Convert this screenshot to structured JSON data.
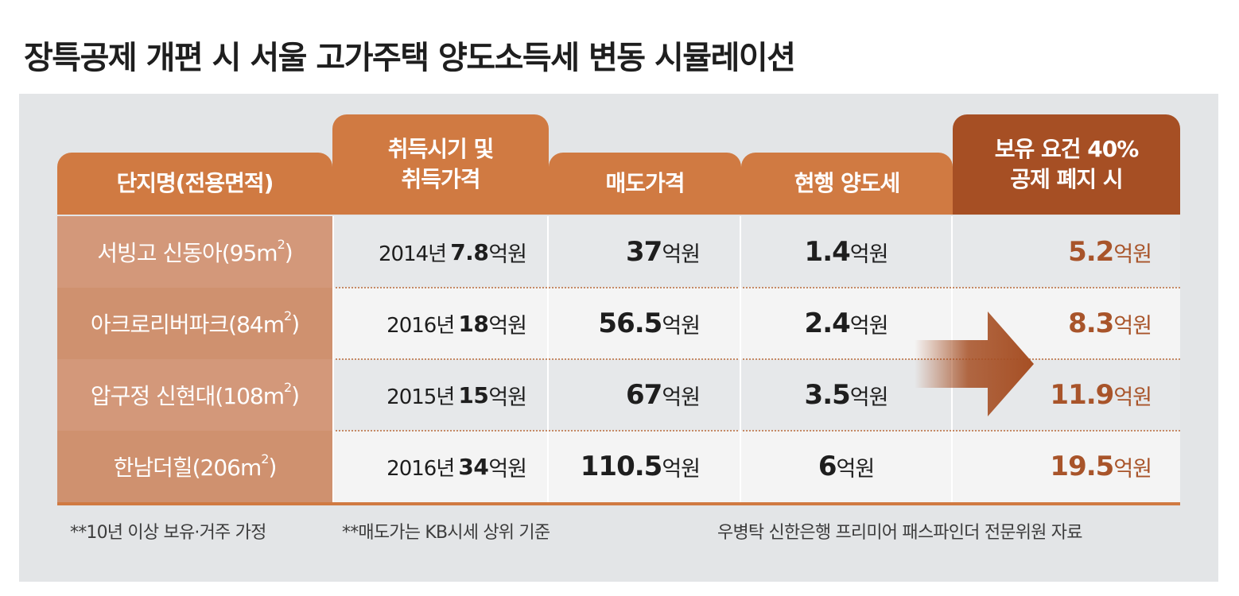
{
  "title": "장특공제 개편 시 서울 고가주택 양도소득세 변동 시뮬레이션",
  "colors": {
    "header_orange": "#d07a42",
    "header_dark": "#a64f24",
    "name_cell": "#d29474",
    "highlight_text": "#a8542a",
    "panel": "#e3e5e7"
  },
  "chart_data": {
    "type": "table",
    "title": "장특공제 개편 시 서울 고가주택 양도소득세 변동 시뮬레이션",
    "columns": [
      {
        "lines": [
          "단지명(전용면적)"
        ]
      },
      {
        "lines": [
          "취득시기 및",
          "취득가격"
        ]
      },
      {
        "lines": [
          "매도가격"
        ]
      },
      {
        "lines": [
          "현행 양도세"
        ]
      },
      {
        "lines": [
          "보유 요건 40%",
          "공제 폐지 시"
        ]
      }
    ],
    "rows": [
      {
        "name": "서빙고 신동아(95m",
        "sup": "2",
        "name_end": ")",
        "acq_year": "2014년",
        "acq_price": "7.8",
        "sale_price": "37",
        "current_tax": "1.4",
        "new_tax": "5.2"
      },
      {
        "name": "아크로리버파크(84m",
        "sup": "2",
        "name_end": ")",
        "acq_year": "2016년",
        "acq_price": "18",
        "sale_price": "56.5",
        "current_tax": "2.4",
        "new_tax": "8.3"
      },
      {
        "name": "압구정 신현대(108m",
        "sup": "2",
        "name_end": ")",
        "acq_year": "2015년",
        "acq_price": "15",
        "sale_price": "67",
        "current_tax": "3.5",
        "new_tax": "11.9"
      },
      {
        "name": "한남더힐(206m",
        "sup": "2",
        "name_end": ")",
        "acq_year": "2016년",
        "acq_price": "34",
        "sale_price": "110.5",
        "current_tax": "6",
        "new_tax": "19.5"
      }
    ],
    "unit": "억원"
  },
  "notes": {
    "assumption": "**10년 이상 보유·거주 가정",
    "basis": "**매도가는 KB시세 상위 기준",
    "source": "우병탁 신한은행 프리미어 패스파인더 전문위원 자료"
  }
}
